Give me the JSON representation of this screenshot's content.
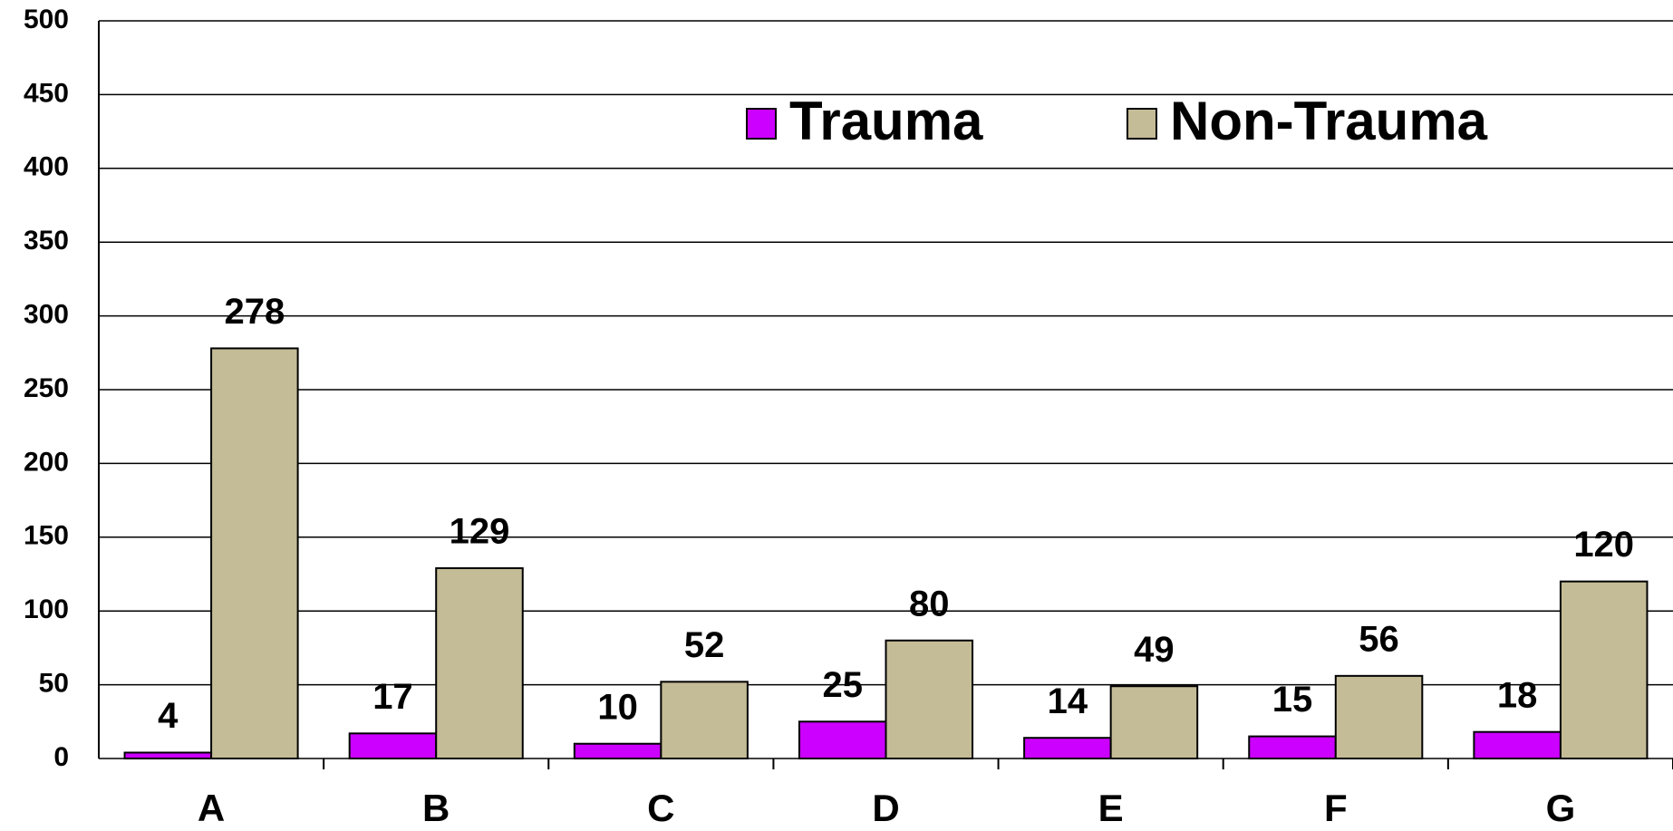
{
  "chart_data": {
    "type": "bar",
    "categories": [
      "A",
      "B",
      "C",
      "D",
      "E",
      "F",
      "G"
    ],
    "series": [
      {
        "name": "Trauma",
        "color": "#cc00ff",
        "values": [
          4,
          17,
          10,
          25,
          14,
          15,
          18
        ]
      },
      {
        "name": "Non-Trauma",
        "color": "#c4bc96",
        "values": [
          278,
          129,
          52,
          80,
          49,
          56,
          120
        ]
      }
    ],
    "ylim": [
      0,
      500
    ],
    "yticks": [
      0,
      50,
      100,
      150,
      200,
      250,
      300,
      350,
      400,
      450,
      500
    ],
    "grid": true,
    "legend": "top"
  }
}
